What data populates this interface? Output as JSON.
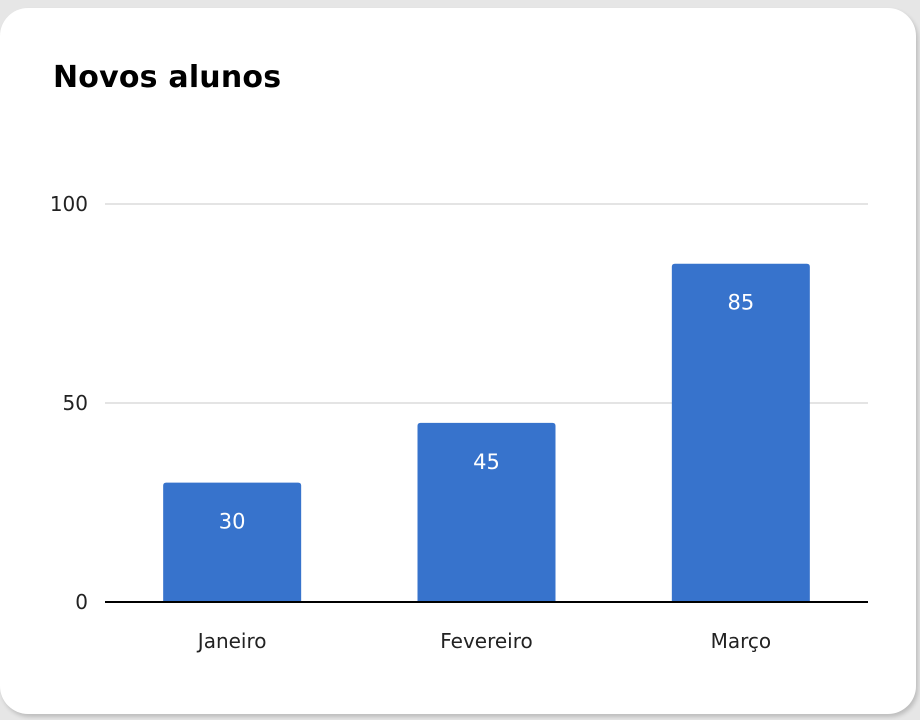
{
  "colors": {
    "bar": "#3773cc",
    "grid": "#d4d4d4",
    "baseline": "#000000"
  },
  "chart_data": {
    "type": "bar",
    "title": "Novos alunos",
    "categories": [
      "Janeiro",
      "Fevereiro",
      "Março"
    ],
    "values": [
      30,
      45,
      85
    ],
    "data_labels": [
      "30",
      "45",
      "85"
    ],
    "yticks": [
      0,
      50,
      100
    ],
    "ylim": [
      0,
      100
    ],
    "xlabel": "",
    "ylabel": "",
    "grid": true,
    "legend": "none"
  }
}
